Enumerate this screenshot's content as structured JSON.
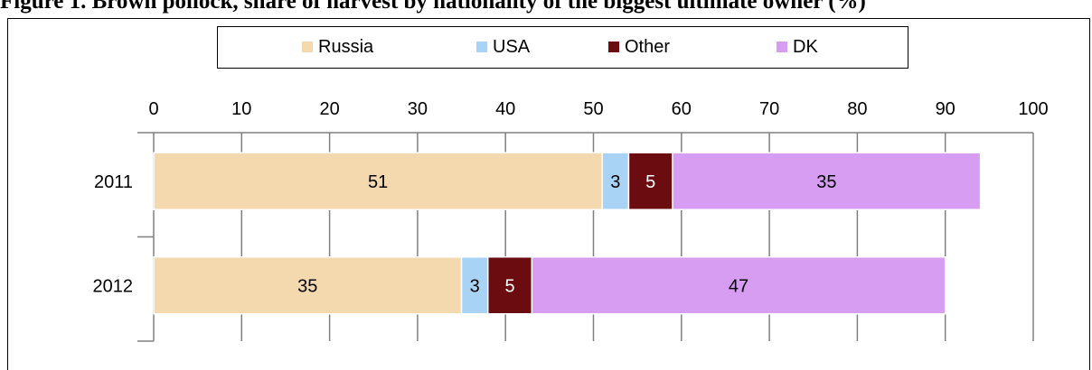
{
  "caption": "Figure 1. Brown pollock, share of harvest by nationality of the biggest ultimate owner (%)",
  "chart_data": {
    "type": "bar",
    "orientation": "horizontal",
    "stacked": true,
    "categories": [
      "2011",
      "2012"
    ],
    "series": [
      {
        "name": "Russia",
        "color": "#f4d9ae",
        "values": [
          51,
          35
        ]
      },
      {
        "name": "USA",
        "color": "#a9d3f5",
        "values": [
          3,
          3
        ]
      },
      {
        "name": "Other",
        "color": "#6b0d10",
        "values": [
          5,
          5
        ]
      },
      {
        "name": "DK",
        "color": "#d79df3",
        "values": [
          35,
          47
        ]
      }
    ],
    "xlim": [
      0,
      100
    ],
    "xticks": [
      0,
      10,
      20,
      30,
      40,
      50,
      60,
      70,
      80,
      90,
      100
    ],
    "grid": true,
    "legend": "top"
  }
}
